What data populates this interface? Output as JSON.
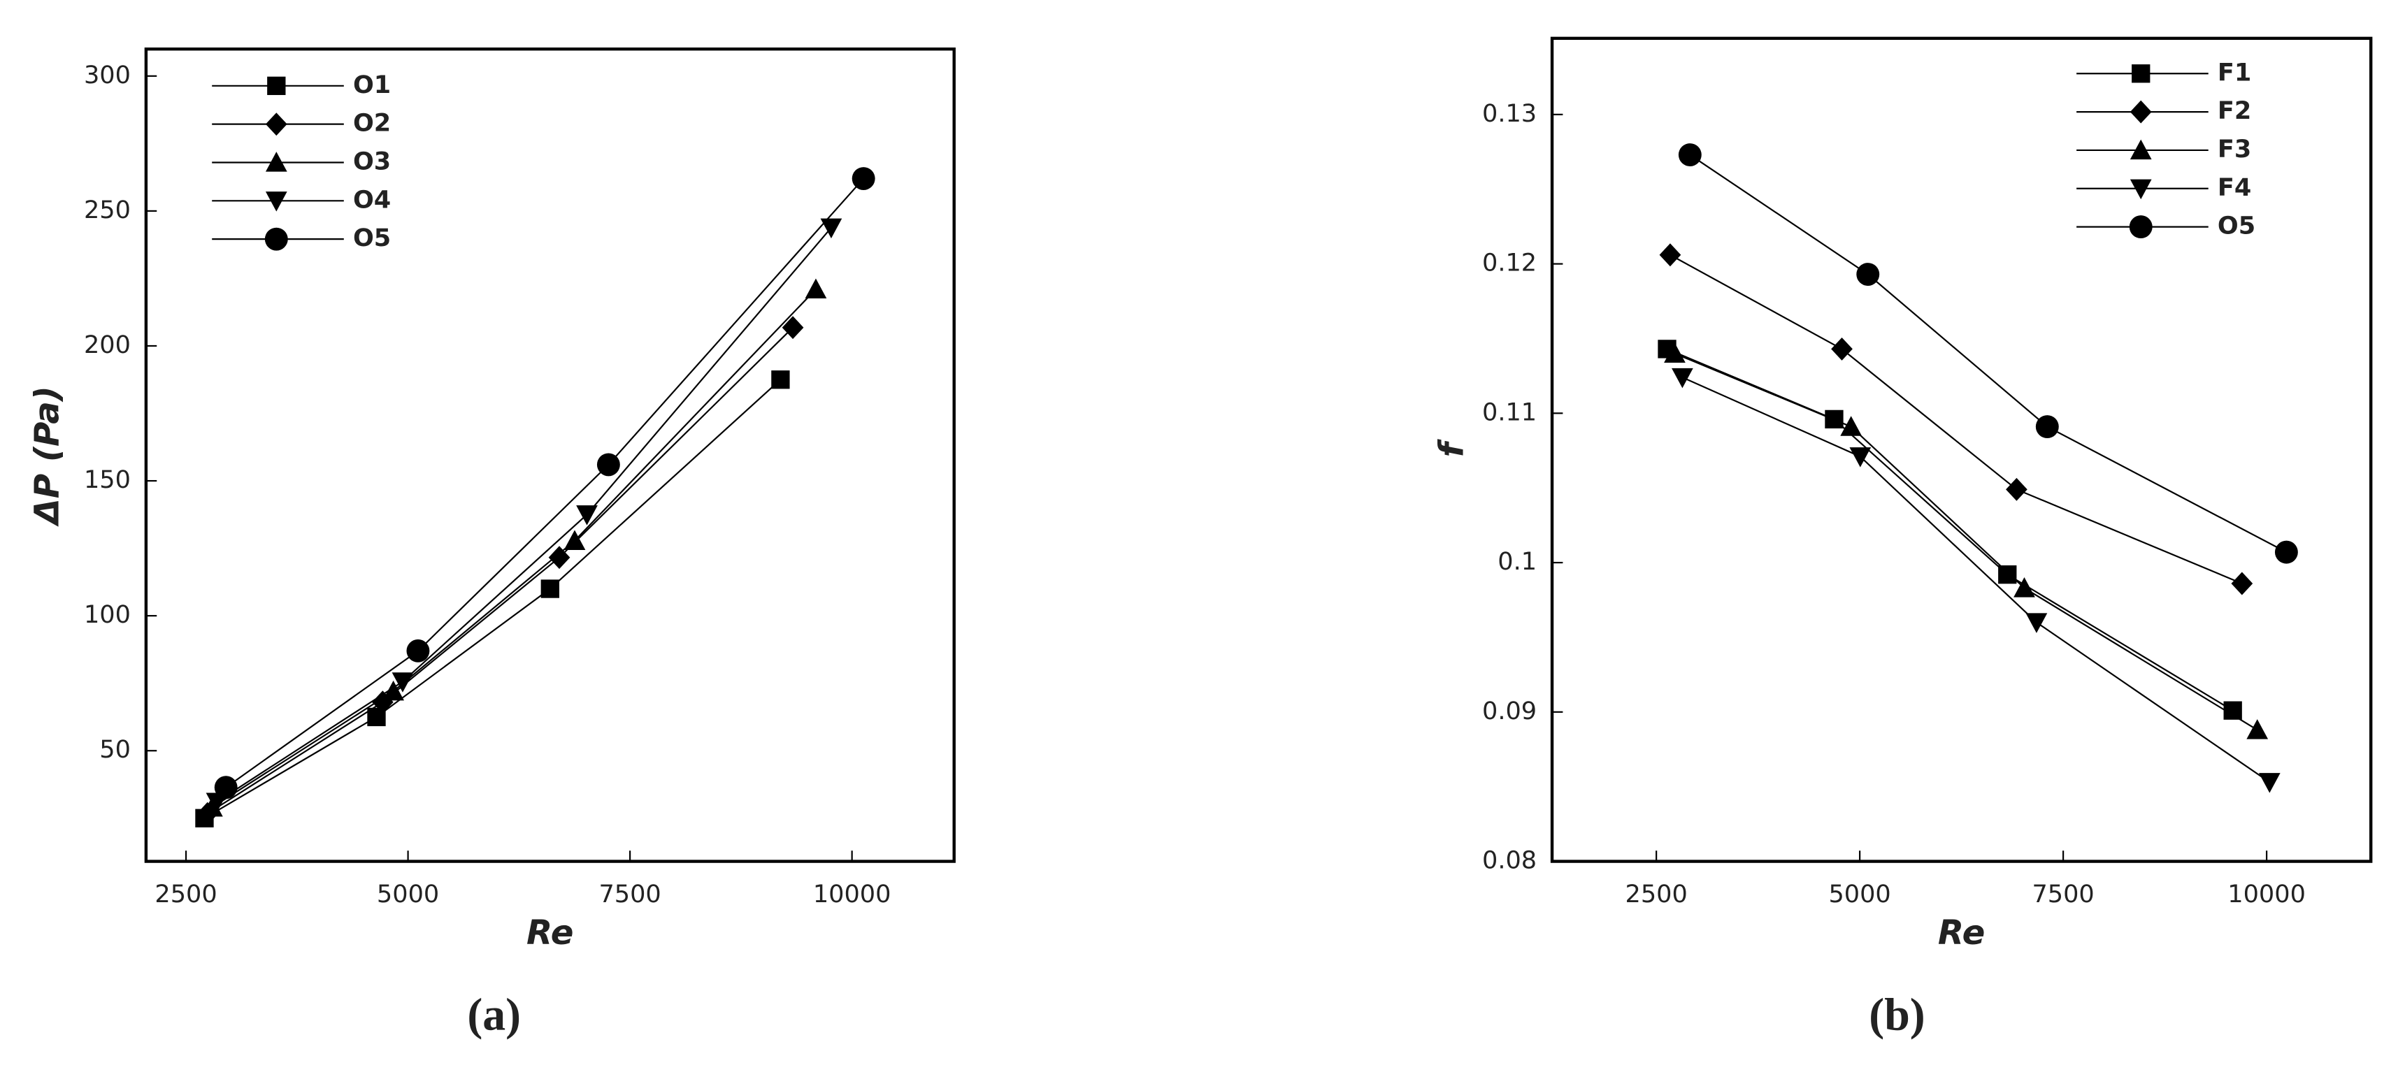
{
  "chart_data": [
    {
      "type": "line",
      "caption": "(a)",
      "x_label": "Re",
      "y_label": "ΔP (Pa)",
      "xlim": [
        2050,
        11150
      ],
      "ylim": [
        9,
        310
      ],
      "xticks": [
        2500,
        5000,
        7500,
        10000
      ],
      "yticks": [
        50,
        100,
        150,
        200,
        250,
        300
      ],
      "grid": false,
      "legend": "upper left",
      "series": [
        {
          "name": "O1",
          "color": "#000000",
          "marker": "square",
          "x": [
            2708,
            4645,
            6600,
            9195
          ],
          "values": [
            25,
            62.5,
            110,
            187.5
          ]
        },
        {
          "name": "O2",
          "color": "#000000",
          "marker": "diamond",
          "x": [
            2742,
            4715,
            6704,
            9334
          ],
          "values": [
            26.7,
            68,
            121.6,
            206.8
          ]
        },
        {
          "name": "O3",
          "color": "#000000",
          "marker": "triangle",
          "x": [
            2794,
            4835,
            6877,
            9593
          ],
          "values": [
            29,
            72,
            127.8,
            221
          ]
        },
        {
          "name": "O4",
          "color": "#000000",
          "marker": "triangle-down",
          "x": [
            2846,
            4940,
            7015,
            9766
          ],
          "values": [
            31,
            75.6,
            137.5,
            243.8
          ]
        },
        {
          "name": "O5",
          "color": "#000000",
          "marker": "circle",
          "x": [
            2950,
            5113,
            7258,
            10130
          ],
          "values": [
            36.4,
            87,
            156,
            262
          ]
        }
      ]
    },
    {
      "type": "line",
      "caption": "(b)",
      "x_label": "Re",
      "y_label": "f",
      "xlim": [
        1219,
        11281
      ],
      "ylim": [
        0.08,
        0.1351
      ],
      "xticks": [
        2500,
        5000,
        7500,
        10000
      ],
      "yticks": [
        0.08,
        0.09,
        0.1,
        0.11,
        0.12,
        0.13
      ],
      "grid": false,
      "legend": "upper right",
      "series": [
        {
          "name": "F1",
          "color": "#000000",
          "marker": "square",
          "x": [
            2632,
            4685,
            6814,
            9584
          ],
          "values": [
            0.1143,
            0.1096,
            0.0992,
            0.0901
          ]
        },
        {
          "name": "F2",
          "color": "#000000",
          "marker": "diamond",
          "x": [
            2670,
            4780,
            6927,
            9697
          ],
          "values": [
            0.1206,
            0.1143,
            0.1049,
            0.0986
          ]
        },
        {
          "name": "F3",
          "color": "#000000",
          "marker": "triangle",
          "x": [
            2726,
            4893,
            7022,
            9885
          ],
          "values": [
            0.114,
            0.1091,
            0.0983,
            0.0888
          ]
        },
        {
          "name": "F4",
          "color": "#000000",
          "marker": "triangle-down",
          "x": [
            2820,
            5006,
            7172,
            10036
          ],
          "values": [
            0.1124,
            0.1071,
            0.096,
            0.0853
          ]
        },
        {
          "name": "O5",
          "color": "#000000",
          "marker": "circle",
          "x": [
            2914,
            5100,
            7304,
            10243
          ],
          "values": [
            0.1273,
            0.1193,
            0.1091,
            0.1007
          ]
        }
      ]
    }
  ]
}
